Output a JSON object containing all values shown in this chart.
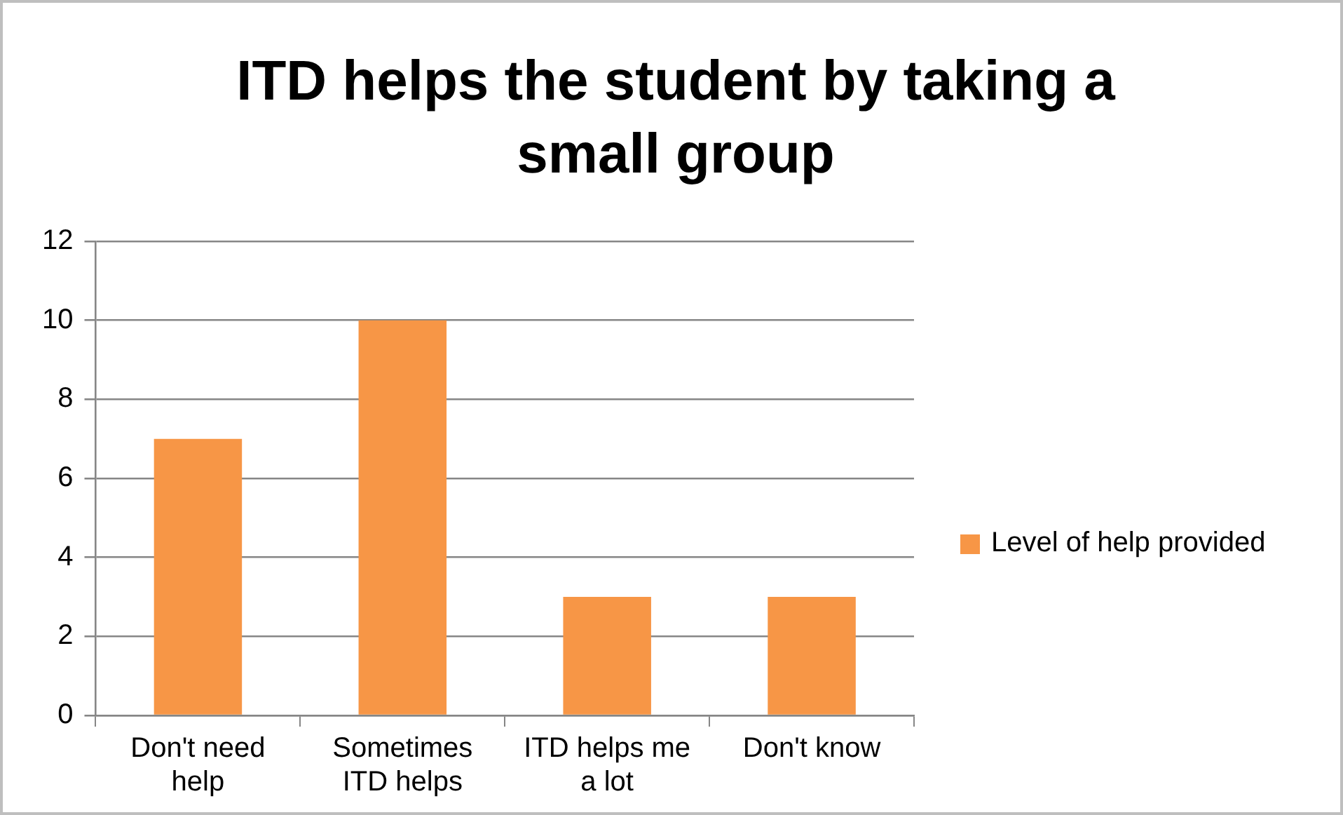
{
  "chart_data": {
    "type": "bar",
    "title": "ITD helps the student by taking a small group",
    "categories": [
      "Don't need help",
      "Sometimes ITD helps",
      "ITD helps me a lot",
      "Don't know"
    ],
    "series": [
      {
        "name": "Level of help provided",
        "color": "#f79646",
        "values": [
          7,
          10,
          3,
          3
        ]
      }
    ],
    "ylim": [
      0,
      12
    ],
    "yticks": [
      0,
      2,
      4,
      6,
      8,
      10,
      12
    ],
    "grid": "y",
    "legend": "right"
  }
}
